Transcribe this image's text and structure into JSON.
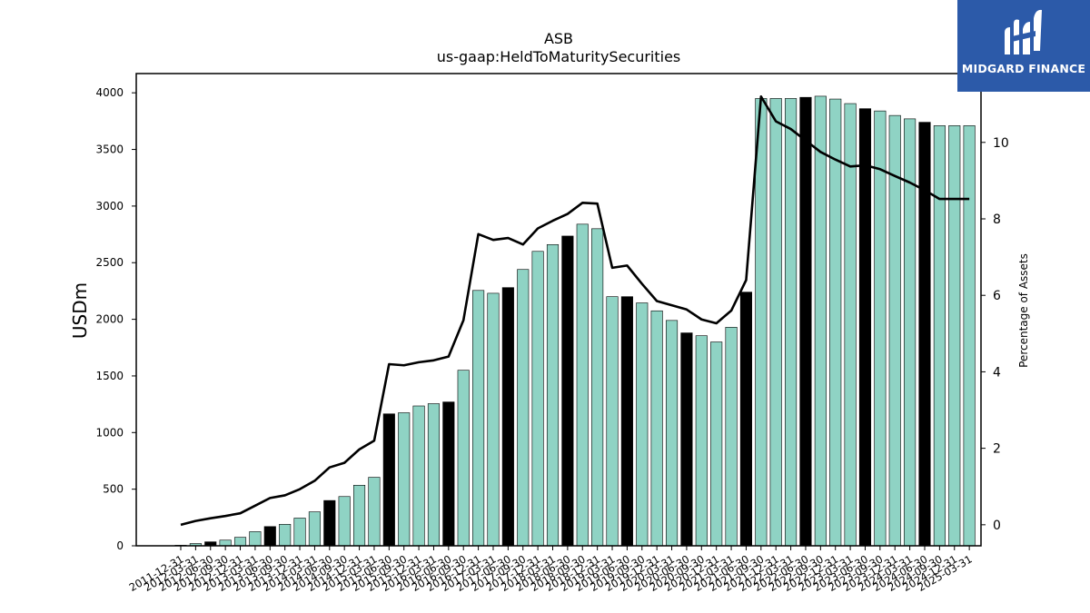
{
  "chart_data": {
    "type": "bar",
    "title": "ASB",
    "subtitle": "us-gaap:HeldToMaturitySecurities",
    "ylabel": "USDm",
    "y2label": "Percentage of Assets",
    "ylim": [
      0,
      4170
    ],
    "y2lim": [
      -0.55,
      11.8
    ],
    "yticks": [
      0,
      500,
      1000,
      1500,
      2000,
      2500,
      3000,
      3500,
      4000
    ],
    "y2ticks": [
      0,
      2,
      4,
      6,
      8,
      10
    ],
    "categories": [
      "2011-12-31",
      "2012-03-31",
      "2012-06-30",
      "2012-09-30",
      "2012-12-31",
      "2013-03-31",
      "2013-06-30",
      "2013-09-30",
      "2013-12-31",
      "2014-03-31",
      "2014-06-30",
      "2014-09-30",
      "2014-12-31",
      "2015-03-31",
      "2015-06-30",
      "2015-09-30",
      "2015-12-31",
      "2016-03-31",
      "2016-06-30",
      "2016-09-30",
      "2016-12-31",
      "2017-03-31",
      "2017-06-30",
      "2017-09-30",
      "2017-12-31",
      "2018-03-31",
      "2018-06-30",
      "2018-09-30",
      "2018-12-31",
      "2019-03-31",
      "2019-06-30",
      "2019-09-30",
      "2019-12-31",
      "2020-03-31",
      "2020-06-30",
      "2020-09-30",
      "2020-12-31",
      "2021-03-31",
      "2021-06-30",
      "2021-09-30",
      "2021-12-31",
      "2022-03-31",
      "2022-06-30",
      "2022-09-30",
      "2022-12-31",
      "2023-03-31",
      "2023-06-30",
      "2023-09-30",
      "2023-12-31",
      "2024-03-31",
      "2024-06-30",
      "2024-09-30",
      "2024-12-31",
      "2025-03-31"
    ],
    "tick_labels": [
      "2011-12-31",
      "2012-03-31",
      "2012-06-30",
      "2012-09-30",
      "2012-12-31",
      "2013-03-31",
      "2013-06-30",
      "2013-09-30",
      "2013-12-31",
      "2014-03-31",
      "2014-06-30",
      "2014-09-30",
      "2014-12-31",
      "2015-03-31",
      "2015-06-30",
      "2015-09-30",
      "2015-12-31",
      "2016-03-31",
      "2016-06-30",
      "2016-09-30",
      "2016-12-31",
      "2017-03-31",
      "2017-06-30",
      "2017-09-30",
      "2017-12-31",
      "2018-03-31",
      "2018-06-30",
      "2018-09-30",
      "2018-12-31",
      "2019-03-31",
      "2019-06-30",
      "2019-09-30",
      "2019-12-31",
      "2020-03-31",
      "2020-06-30",
      "2020-09-30",
      "2020-12-31",
      "2021-03-31",
      "2021-06-30",
      "2021-09-30",
      "2021-12-31",
      "2022-03-31",
      "2022-06-30",
      "2022-09-30",
      "2022-12-31",
      "2023-03-31",
      "2023-06-30",
      "2023-09-30",
      "2023-12-31",
      "2024-03-31",
      "2024-06-30",
      "2024-09-30",
      "2024-12-31",
      "2025-03-31"
    ],
    "series": [
      {
        "type": "bar",
        "axis": "left",
        "values": [
          5,
          20,
          35,
          50,
          75,
          125,
          170,
          190,
          245,
          300,
          400,
          435,
          535,
          605,
          1165,
          1175,
          1235,
          1255,
          1270,
          1550,
          2255,
          2230,
          2280,
          2440,
          2600,
          2660,
          2735,
          2840,
          2800,
          2200,
          2200,
          2145,
          2075,
          1990,
          1880,
          1855,
          1800,
          1930,
          2240,
          3950,
          3950,
          3950,
          3960,
          3970,
          3945,
          3905,
          3860,
          3840,
          3800,
          3770,
          3740,
          3710,
          3710,
          3710
        ],
        "highlight": [
          false,
          false,
          true,
          false,
          false,
          false,
          true,
          false,
          false,
          false,
          true,
          false,
          false,
          false,
          true,
          false,
          false,
          false,
          true,
          false,
          false,
          false,
          true,
          false,
          false,
          false,
          true,
          false,
          false,
          false,
          true,
          false,
          false,
          false,
          true,
          false,
          false,
          false,
          true,
          false,
          false,
          false,
          true,
          false,
          false,
          false,
          true,
          false,
          false,
          false,
          true,
          false,
          false,
          false
        ]
      },
      {
        "type": "line",
        "axis": "right",
        "values": [
          0.0,
          0.1,
          0.17,
          0.23,
          0.3,
          0.5,
          0.7,
          0.77,
          0.93,
          1.15,
          1.5,
          1.62,
          1.97,
          2.2,
          4.2,
          4.17,
          4.25,
          4.3,
          4.4,
          5.35,
          7.6,
          7.45,
          7.5,
          7.33,
          7.75,
          7.95,
          8.13,
          8.42,
          8.4,
          6.72,
          6.78,
          6.3,
          5.85,
          5.74,
          5.63,
          5.37,
          5.27,
          5.6,
          6.4,
          11.2,
          10.55,
          10.35,
          10.05,
          9.75,
          9.55,
          9.37,
          9.4,
          9.3,
          9.12,
          8.95,
          8.75,
          8.52,
          8.52,
          8.52
        ]
      }
    ],
    "colors": {
      "bar": "#8fd3c4",
      "bar_highlight": "#000000",
      "line": "#000000"
    },
    "grid": false,
    "legend": "none"
  },
  "logo": {
    "text": "MIDGARD FINANCE",
    "background": "#2c5aa9"
  }
}
